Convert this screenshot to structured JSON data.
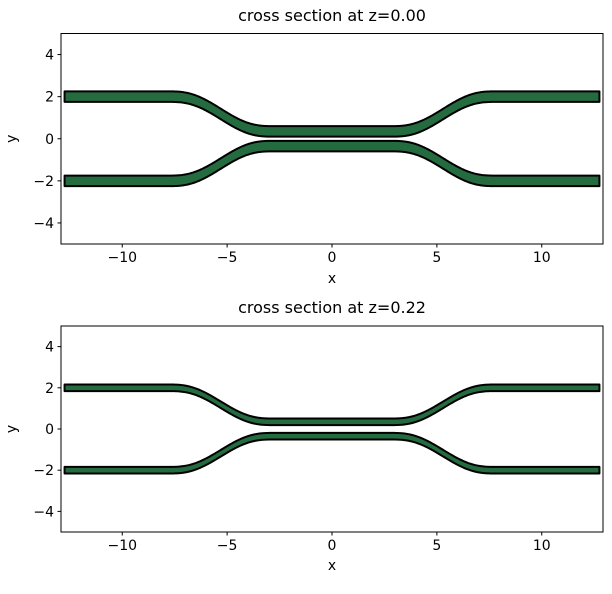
{
  "figure": {
    "kind": "matplotlib figure with two stacked subplots",
    "background_color": "#ffffff"
  },
  "chart_data": {
    "type": "area",
    "description": "Filled cross-section polygons of a symmetric two-waveguide coupler plotted at two z heights; two mirrored bands run flat at y=±2 on the outside, S-bend inward, and run flat at y=±0.35 through the central coupling region",
    "xlabel": "x",
    "ylabel": "y",
    "xlim": [
      -12.92,
      12.92
    ],
    "ylim": [
      -5,
      5
    ],
    "xtick_values": [
      -10,
      -5,
      0,
      5,
      10
    ],
    "xtick_labels": [
      "−10",
      "−5",
      "0",
      "5",
      "10"
    ],
    "ytick_values": [
      4,
      2,
      0,
      -2,
      -4
    ],
    "ytick_labels": [
      "4",
      "2",
      "0",
      "−2",
      "−4"
    ],
    "grid": false,
    "legend": false,
    "geometry": {
      "x_start": -12.75,
      "x_end": 12.75,
      "outer_center_y": 2.0,
      "inner_center_y": 0.35,
      "bend_inner_x": 2.8,
      "bend_outer_x": 7.8,
      "sample_step": 0.05
    },
    "subplots": [
      {
        "title": "cross section at z=0.00",
        "z": 0.0,
        "waveguide_width": 0.5
      },
      {
        "title": "cross section at z=0.22",
        "z": 0.22,
        "waveguide_width": 0.32
      }
    ],
    "colors": {
      "fill": "#256B40",
      "edge": "#000000",
      "text": "#000000",
      "axes_background": "#ffffff"
    }
  }
}
